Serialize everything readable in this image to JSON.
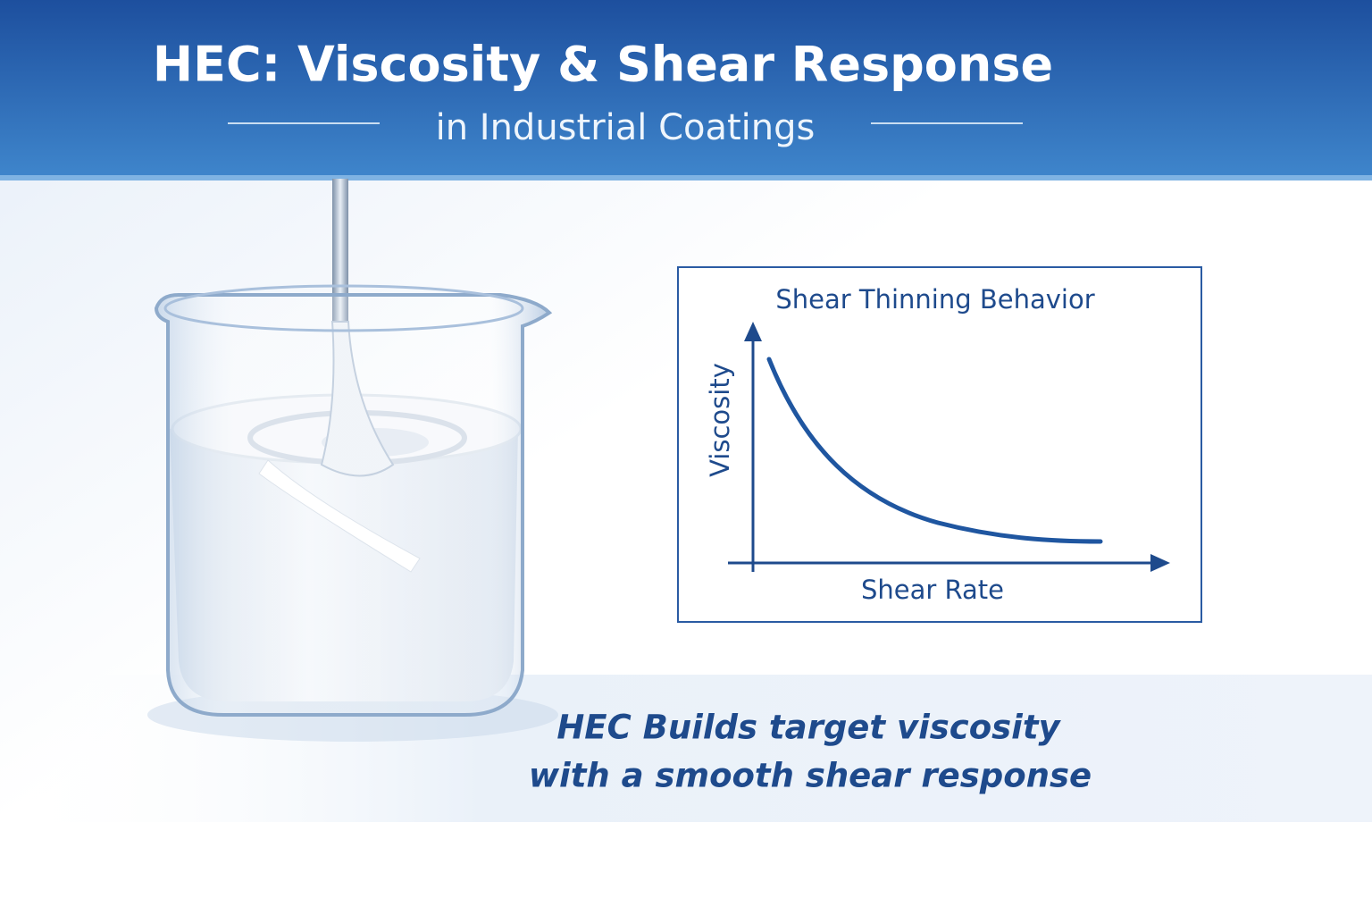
{
  "header": {
    "title": "HEC: Viscosity & Shear Response",
    "subtitle": "in Industrial Coatings"
  },
  "diagram": {
    "title": "Shear Thinning Behavior",
    "y_label": "Viscosity",
    "x_label": "Shear Rate"
  },
  "caption": {
    "lines": [
      "HEC Builds target viscosity",
      "with a smooth shear response"
    ]
  }
}
